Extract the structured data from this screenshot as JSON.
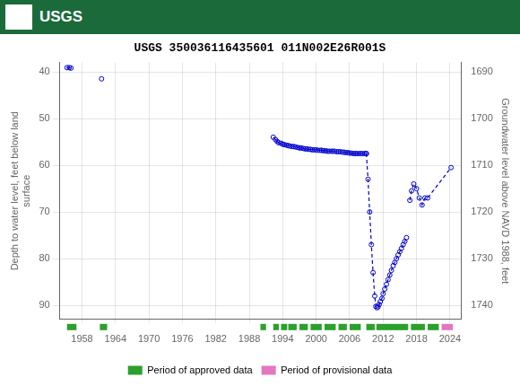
{
  "chart_data": {
    "type": "line",
    "title": "USGS 350036116435601 011N002E26R001S",
    "annotations": [
      {
        "text": "USGS",
        "color": "#1b6b3a"
      }
    ],
    "ylabel": "Depth to water level, feet below land\nsurface",
    "y2label": "Groundwater level above NAVD 1988, feet",
    "xlim": [
      1954,
      2026
    ],
    "xticks": [
      1958,
      1964,
      1970,
      1976,
      1982,
      1988,
      1994,
      2000,
      2006,
      2012,
      2018,
      2024
    ],
    "ylim": [
      93,
      38
    ],
    "yticks": [
      40,
      50,
      60,
      70,
      80,
      90
    ],
    "y2lim": [
      1743,
      1688
    ],
    "y2ticks": [
      1690,
      1700,
      1710,
      1720,
      1730,
      1740
    ],
    "grid": true,
    "legend": "bottom",
    "series": [
      {
        "color": "#0000cc",
        "marker": "circle",
        "line_style": "solid",
        "x": [
          1955.3,
          1955.7,
          1956.0
        ],
        "values": [
          39.1,
          39.1,
          39.2
        ]
      },
      {
        "color": "#0000cc",
        "marker": "circle",
        "line_style": "none",
        "x": [
          1961.5
        ],
        "values": [
          41.5
        ]
      },
      {
        "color": "#0000cc",
        "marker": "circle",
        "line_style": "solid",
        "x": [
          1992.3,
          1992.7,
          1993.0,
          1993.3,
          1993.7,
          1994.0,
          1994.3,
          1994.7,
          1995.0,
          1995.3,
          1995.7,
          1996.0,
          1996.3,
          1996.7,
          1997.0,
          1997.3,
          1997.7,
          1998.0,
          1998.3,
          1998.7,
          1999.0,
          1999.3,
          1999.7,
          2000.0,
          2000.3,
          2000.7,
          2001.0,
          2001.3,
          2001.7,
          2002.0,
          2002.3,
          2002.7,
          2003.0,
          2003.3,
          2003.7,
          2004.0,
          2004.3,
          2004.7,
          2005.0,
          2005.3,
          2005.7,
          2006.0,
          2006.3,
          2006.7,
          2007.0,
          2007.3,
          2007.7,
          2008.0,
          2008.3,
          2008.7,
          2009.0
        ],
        "values": [
          54.0,
          54.5,
          54.9,
          55.2,
          55.3,
          55.5,
          55.6,
          55.7,
          55.8,
          55.9,
          56.0,
          56.0,
          56.1,
          56.2,
          56.3,
          56.3,
          56.4,
          56.5,
          56.5,
          56.6,
          56.6,
          56.7,
          56.7,
          56.7,
          56.8,
          56.8,
          56.8,
          56.9,
          56.9,
          57.0,
          57.0,
          57.0,
          57.0,
          57.0,
          57.1,
          57.1,
          57.1,
          57.2,
          57.2,
          57.3,
          57.3,
          57.4,
          57.4,
          57.5,
          57.5,
          57.5,
          57.5,
          57.5,
          57.5,
          57.5,
          57.5
        ]
      },
      {
        "color": "#0000cc",
        "marker": "circle",
        "line_style": "dashed",
        "x": [
          2009.0,
          2009.3,
          2009.6,
          2009.9,
          2010.2,
          2010.5,
          2010.7,
          2010.9,
          2011.1,
          2011.3,
          2011.5,
          2011.8,
          2012.0,
          2012.3,
          2012.6,
          2012.9,
          2013.2,
          2013.5,
          2013.8,
          2014.1,
          2014.4,
          2014.7,
          2015.0,
          2015.3,
          2015.6,
          2015.9,
          2016.2
        ],
        "values": [
          57.5,
          63.0,
          70.0,
          77.0,
          83.0,
          88.0,
          90.2,
          90.5,
          90.3,
          89.8,
          89.2,
          88.5,
          87.5,
          86.5,
          85.5,
          84.5,
          83.5,
          82.5,
          81.5,
          80.8,
          80.0,
          79.2,
          78.5,
          77.8,
          77.0,
          76.3,
          75.5
        ]
      },
      {
        "color": "#0000cc",
        "marker": "circle",
        "line_style": "dashed",
        "x": [
          2016.8,
          2017.1,
          2017.5,
          2018.0,
          2018.5,
          2019.0,
          2019.5,
          2020.0,
          2024.2
        ],
        "values": [
          67.5,
          65.5,
          64.0,
          65.0,
          67.0,
          68.5,
          67.0,
          67.0,
          60.5
        ]
      },
      {
        "name": "Period of approved data",
        "type": "period",
        "color": "#2ca02c",
        "periods": [
          [
            1955.3,
            1957.0
          ],
          [
            1961.2,
            1962.5
          ],
          [
            1990.0,
            1991.0
          ],
          [
            1992.3,
            1993.3
          ],
          [
            1993.7,
            1994.8
          ],
          [
            1995.0,
            1996.5
          ],
          [
            1997.0,
            1998.5
          ],
          [
            1999.0,
            2001.0
          ],
          [
            2001.5,
            2003.5
          ],
          [
            2004.0,
            2005.5
          ],
          [
            2006.0,
            2008.0
          ],
          [
            2009.0,
            2010.5
          ],
          [
            2010.8,
            2016.5
          ],
          [
            2017.0,
            2019.5
          ],
          [
            2020.0,
            2022.0
          ]
        ]
      },
      {
        "name": "Period of provisional data",
        "type": "period",
        "color": "#e377c2",
        "periods": [
          [
            2022.5,
            2024.5
          ]
        ]
      }
    ]
  }
}
